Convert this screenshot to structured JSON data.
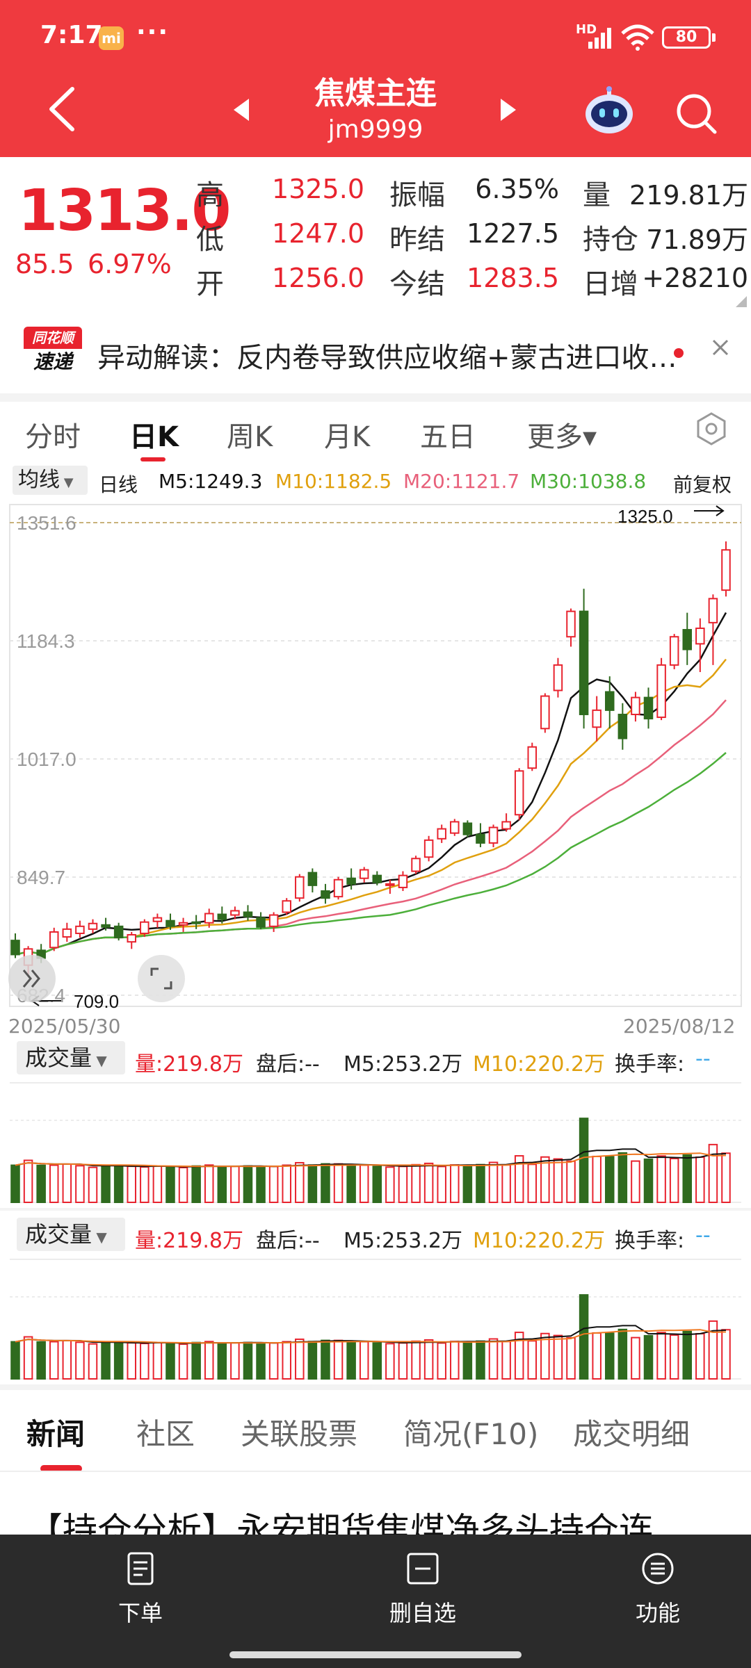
{
  "status_bar": {
    "time": "7:17",
    "mi_badge": "mi",
    "dots": "···",
    "network": "HD",
    "battery": "80"
  },
  "header": {
    "contract_name": "焦煤主连",
    "contract_code": "jm9999"
  },
  "quote": {
    "last": "1313.0",
    "change": "85.5",
    "change_pct": "6.97%",
    "fields": [
      {
        "label": "高",
        "value": "1325.0",
        "color": "red"
      },
      {
        "label": "低",
        "value": "1247.0",
        "color": "red"
      },
      {
        "label": "开",
        "value": "1256.0",
        "color": "red"
      },
      {
        "label": "振幅",
        "value": "6.35%",
        "color": "black"
      },
      {
        "label": "昨结",
        "value": "1227.5",
        "color": "black"
      },
      {
        "label": "今结",
        "value": "1283.5",
        "color": "red"
      },
      {
        "label": "量",
        "value": "219.81万",
        "color": "black"
      },
      {
        "label": "持仓",
        "value": "71.89万",
        "color": "black"
      },
      {
        "label": "日增",
        "value": "+28210",
        "color": "black"
      }
    ]
  },
  "alert": {
    "logo_top": "同花顺",
    "logo_bottom": "速递",
    "text": "异动解读：反内卷导致供应收缩+蒙古进口收…"
  },
  "kline_tabs": [
    "分时",
    "日K",
    "周K",
    "月K",
    "五日",
    "更多▾"
  ],
  "ma": {
    "select": "均线",
    "label": "日线",
    "items": [
      {
        "text": "M5:1249.3",
        "color": "#111111"
      },
      {
        "text": "M10:1182.5",
        "color": "#e0a00e"
      },
      {
        "text": "M20:1121.7",
        "color": "#e8607a"
      },
      {
        "text": "M30:1038.8",
        "color": "#4caf3a"
      }
    ],
    "adjust": "前复权"
  },
  "chart": {
    "y_labels": [
      "1351.6",
      "1184.3",
      "1017.0",
      "849.7",
      "682.4"
    ],
    "high_marker": "1325.0",
    "low_marker": "709.0",
    "start_date": "2025/05/30",
    "end_date": "2025/08/12"
  },
  "volume_panels": [
    {
      "select": "成交量",
      "vol": "量:219.8万",
      "after": "盘后:--",
      "m5": "M5:253.2万",
      "m10": "M10:220.2万",
      "turnover_label": "换手率:",
      "turnover": "--"
    },
    {
      "select": "成交量",
      "vol": "量:219.8万",
      "after": "盘后:--",
      "m5": "M5:253.2万",
      "m10": "M10:220.2万",
      "turnover_label": "换手率:",
      "turnover": "--"
    }
  ],
  "bottom_tabs": [
    "新闻",
    "社区",
    "关联股票",
    "简况(F10)",
    "成交明细"
  ],
  "news_headline": "【持仓分析】永安期货焦煤净多头持仓连",
  "bottom_bar": [
    {
      "label": "下单",
      "icon": "order-doc-icon"
    },
    {
      "label": "删自选",
      "icon": "remove-watchlist-icon"
    },
    {
      "label": "功能",
      "icon": "menu-icon"
    }
  ],
  "chart_data": {
    "type": "candlestick",
    "x_start": "2025/05/30",
    "x_end": "2025/08/12",
    "ylim": [
      682.4,
      1351.6
    ],
    "y_ticks": [
      1351.6,
      1184.3,
      1017.0,
      849.7,
      682.4
    ],
    "candles": [
      {
        "o": 760,
        "h": 770,
        "l": 735,
        "c": 740
      },
      {
        "o": 725,
        "h": 752,
        "l": 709,
        "c": 748
      },
      {
        "o": 746,
        "h": 755,
        "l": 728,
        "c": 735
      },
      {
        "o": 750,
        "h": 778,
        "l": 745,
        "c": 772
      },
      {
        "o": 765,
        "h": 785,
        "l": 758,
        "c": 776
      },
      {
        "o": 770,
        "h": 788,
        "l": 764,
        "c": 780
      },
      {
        "o": 776,
        "h": 790,
        "l": 770,
        "c": 784
      },
      {
        "o": 782,
        "h": 792,
        "l": 774,
        "c": 779
      },
      {
        "o": 780,
        "h": 785,
        "l": 760,
        "c": 764
      },
      {
        "o": 758,
        "h": 772,
        "l": 748,
        "c": 768
      },
      {
        "o": 770,
        "h": 790,
        "l": 765,
        "c": 786
      },
      {
        "o": 787,
        "h": 798,
        "l": 778,
        "c": 792
      },
      {
        "o": 788,
        "h": 798,
        "l": 775,
        "c": 780
      },
      {
        "o": 782,
        "h": 792,
        "l": 772,
        "c": 785
      },
      {
        "o": 786,
        "h": 796,
        "l": 776,
        "c": 784
      },
      {
        "o": 785,
        "h": 805,
        "l": 778,
        "c": 798
      },
      {
        "o": 797,
        "h": 808,
        "l": 784,
        "c": 790
      },
      {
        "o": 796,
        "h": 808,
        "l": 790,
        "c": 802
      },
      {
        "o": 800,
        "h": 810,
        "l": 788,
        "c": 794
      },
      {
        "o": 792,
        "h": 800,
        "l": 776,
        "c": 779
      },
      {
        "o": 780,
        "h": 800,
        "l": 772,
        "c": 796
      },
      {
        "o": 800,
        "h": 820,
        "l": 796,
        "c": 816
      },
      {
        "o": 820,
        "h": 854,
        "l": 815,
        "c": 850
      },
      {
        "o": 856,
        "h": 862,
        "l": 828,
        "c": 838
      },
      {
        "o": 830,
        "h": 840,
        "l": 812,
        "c": 820
      },
      {
        "o": 822,
        "h": 850,
        "l": 818,
        "c": 846
      },
      {
        "o": 848,
        "h": 862,
        "l": 832,
        "c": 840
      },
      {
        "o": 848,
        "h": 864,
        "l": 842,
        "c": 860
      },
      {
        "o": 852,
        "h": 858,
        "l": 838,
        "c": 842
      },
      {
        "o": 838,
        "h": 846,
        "l": 826,
        "c": 840
      },
      {
        "o": 835,
        "h": 858,
        "l": 830,
        "c": 852
      },
      {
        "o": 858,
        "h": 880,
        "l": 854,
        "c": 876
      },
      {
        "o": 878,
        "h": 908,
        "l": 872,
        "c": 902
      },
      {
        "o": 904,
        "h": 924,
        "l": 898,
        "c": 918
      },
      {
        "o": 912,
        "h": 932,
        "l": 908,
        "c": 928
      },
      {
        "o": 926,
        "h": 930,
        "l": 906,
        "c": 910
      },
      {
        "o": 910,
        "h": 926,
        "l": 892,
        "c": 898
      },
      {
        "o": 898,
        "h": 924,
        "l": 892,
        "c": 920
      },
      {
        "o": 918,
        "h": 940,
        "l": 914,
        "c": 928
      },
      {
        "o": 938,
        "h": 1004,
        "l": 930,
        "c": 1000
      },
      {
        "o": 1004,
        "h": 1040,
        "l": 1000,
        "c": 1034
      },
      {
        "o": 1060,
        "h": 1110,
        "l": 1054,
        "c": 1106
      },
      {
        "o": 1114,
        "h": 1160,
        "l": 1104,
        "c": 1150
      },
      {
        "o": 1190,
        "h": 1230,
        "l": 1176,
        "c": 1226
      },
      {
        "o": 1226,
        "h": 1258,
        "l": 1060,
        "c": 1080
      },
      {
        "o": 1062,
        "h": 1106,
        "l": 1042,
        "c": 1086
      },
      {
        "o": 1112,
        "h": 1134,
        "l": 1060,
        "c": 1086
      },
      {
        "o": 1080,
        "h": 1096,
        "l": 1030,
        "c": 1046
      },
      {
        "o": 1080,
        "h": 1112,
        "l": 1070,
        "c": 1104
      },
      {
        "o": 1104,
        "h": 1118,
        "l": 1060,
        "c": 1074
      },
      {
        "o": 1076,
        "h": 1160,
        "l": 1072,
        "c": 1150
      },
      {
        "o": 1150,
        "h": 1194,
        "l": 1144,
        "c": 1190
      },
      {
        "o": 1200,
        "h": 1224,
        "l": 1150,
        "c": 1172
      },
      {
        "o": 1180,
        "h": 1216,
        "l": 1140,
        "c": 1202
      },
      {
        "o": 1210,
        "h": 1250,
        "l": 1150,
        "c": 1244
      },
      {
        "o": 1256,
        "h": 1325,
        "l": 1247,
        "c": 1313
      }
    ],
    "ma_series": [
      {
        "name": "M5",
        "color": "#111111",
        "last": 1249.3
      },
      {
        "name": "M10",
        "color": "#e0a00e",
        "last": 1182.5
      },
      {
        "name": "M20",
        "color": "#e8607a",
        "last": 1121.7
      },
      {
        "name": "M30",
        "color": "#4caf3a",
        "last": 1038.8
      }
    ]
  }
}
